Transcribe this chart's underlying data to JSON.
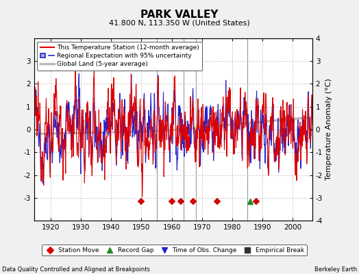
{
  "title": "PARK VALLEY",
  "subtitle": "41.800 N, 113.350 W (United States)",
  "xlabel_left": "Data Quality Controlled and Aligned at Breakpoints",
  "xlabel_right": "Berkeley Earth",
  "ylabel": "Temperature Anomaly (°C)",
  "ylim": [
    -4,
    4
  ],
  "xlim": [
    1914.5,
    2006.5
  ],
  "xticks": [
    1920,
    1930,
    1940,
    1950,
    1960,
    1970,
    1980,
    1990,
    2000
  ],
  "yticks_left": [
    -3,
    -2,
    -1,
    0,
    1,
    2,
    3
  ],
  "yticks_right": [
    -4,
    -3,
    -2,
    -1,
    0,
    1,
    2,
    3,
    4
  ],
  "bg_color": "#f0f0f0",
  "plot_bg_color": "#ffffff",
  "station_color": "#dd0000",
  "regional_color": "#2222cc",
  "regional_fill_color": "#aaaaee",
  "global_color": "#bbbbbb",
  "vertical_lines": [
    1955,
    1964,
    1968,
    1985
  ],
  "station_move_x": [
    1950,
    1960,
    1963,
    1967,
    1975,
    1988
  ],
  "record_gap_x": [
    1986
  ],
  "obs_change_x": [],
  "empirical_break_x": [],
  "legend_labels": [
    "This Temperature Station (12-month average)",
    "Regional Expectation with 95% uncertainty",
    "Global Land (5-year average)"
  ],
  "marker_items": [
    {
      "label": "Station Move",
      "color": "#dd0000",
      "marker": "D"
    },
    {
      "label": "Record Gap",
      "color": "#228B22",
      "marker": "^"
    },
    {
      "label": "Time of Obs. Change",
      "color": "#2222cc",
      "marker": "v"
    },
    {
      "label": "Empirical Break",
      "color": "#333333",
      "marker": "s"
    }
  ],
  "seed": 12345
}
